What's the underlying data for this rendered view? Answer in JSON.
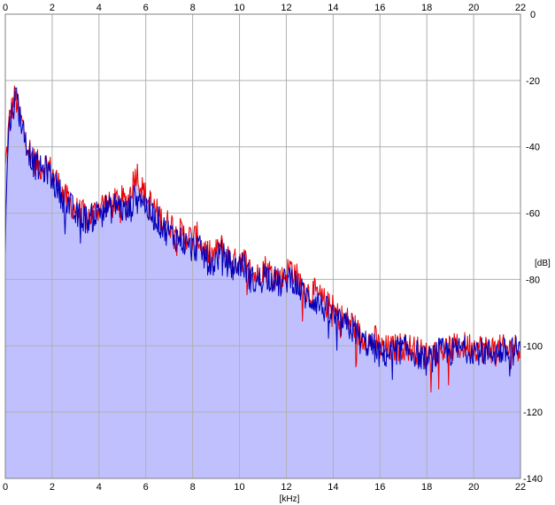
{
  "chart_data": {
    "type": "area",
    "xlabel": "[kHz]",
    "ylabel": "[dB]",
    "xlim": [
      0,
      22
    ],
    "ylim": [
      -140,
      0
    ],
    "x_ticks": [
      0,
      2,
      4,
      6,
      8,
      10,
      12,
      14,
      16,
      18,
      20,
      22
    ],
    "y_ticks": [
      0,
      -20,
      -40,
      -60,
      -80,
      -100,
      -120,
      -140
    ],
    "y_tick_labels": [
      "0",
      "-20",
      "-40",
      "-60",
      "-80",
      "-100",
      "-120",
      "-140"
    ],
    "grid": true,
    "colors": {
      "fill": "#c0c0ff",
      "red_line": "#ee0000",
      "blue_line": "#0000bb",
      "grid": "#b0b0b0",
      "frame": "#808080"
    },
    "series": [
      {
        "color": "red",
        "x": [
          0.0,
          0.1,
          0.2,
          0.3,
          0.4,
          0.5,
          0.6,
          0.8,
          1.0,
          1.2,
          1.5,
          1.8,
          2.0,
          2.2,
          2.5,
          2.8,
          3.0,
          3.2,
          3.5,
          3.8,
          4.0,
          4.2,
          4.5,
          4.8,
          5.0,
          5.2,
          5.4,
          5.6,
          5.8,
          6.0,
          6.2,
          6.5,
          6.8,
          7.0,
          7.2,
          7.5,
          7.8,
          8.0,
          8.2,
          8.5,
          8.8,
          9.0,
          9.2,
          9.5,
          9.8,
          10.0,
          10.2,
          10.5,
          10.8,
          11.0,
          11.2,
          11.5,
          11.8,
          12.0,
          12.2,
          12.5,
          12.8,
          13.0,
          13.2,
          13.5,
          13.8,
          14.0,
          14.2,
          14.5,
          14.8,
          15.0,
          15.2,
          15.4,
          15.6,
          15.8,
          16.0,
          16.5,
          17.0,
          17.5,
          18.0,
          18.5,
          19.0,
          19.5,
          20.0,
          20.5,
          21.0,
          21.5,
          22.0
        ],
        "values": [
          -47,
          -38,
          -30,
          -28,
          -25,
          -27,
          -30,
          -35,
          -40,
          -44,
          -46,
          -45,
          -48,
          -50,
          -55,
          -57,
          -59,
          -60,
          -61,
          -60,
          -58,
          -57,
          -58,
          -56,
          -56,
          -57,
          -52,
          -47,
          -52,
          -55,
          -57,
          -60,
          -63,
          -63,
          -64,
          -66,
          -67,
          -68,
          -67,
          -71,
          -73,
          -72,
          -70,
          -73,
          -75,
          -73,
          -74,
          -78,
          -79,
          -76,
          -77,
          -79,
          -80,
          -78,
          -76,
          -80,
          -83,
          -84,
          -84,
          -86,
          -88,
          -89,
          -91,
          -92,
          -93,
          -95,
          -98,
          -97,
          -99,
          -98,
          -101,
          -101,
          -100,
          -101,
          -103,
          -101,
          -101,
          -100,
          -100,
          -101,
          -101,
          -101,
          -100
        ]
      },
      {
        "color": "blue",
        "x": [
          0.0,
          0.1,
          0.2,
          0.3,
          0.4,
          0.5,
          0.6,
          0.8,
          1.0,
          1.2,
          1.5,
          1.8,
          2.0,
          2.2,
          2.5,
          2.8,
          3.0,
          3.2,
          3.5,
          3.8,
          4.0,
          4.2,
          4.5,
          4.8,
          5.0,
          5.2,
          5.4,
          5.6,
          5.8,
          6.0,
          6.2,
          6.5,
          6.8,
          7.0,
          7.2,
          7.5,
          7.8,
          8.0,
          8.2,
          8.5,
          8.8,
          9.0,
          9.2,
          9.5,
          9.8,
          10.0,
          10.2,
          10.5,
          10.8,
          11.0,
          11.2,
          11.5,
          11.8,
          12.0,
          12.2,
          12.5,
          12.8,
          13.0,
          13.2,
          13.5,
          13.8,
          14.0,
          14.2,
          14.5,
          14.8,
          15.0,
          15.2,
          15.4,
          15.6,
          15.8,
          16.0,
          16.5,
          17.0,
          17.5,
          18.0,
          18.5,
          19.0,
          19.5,
          20.0,
          20.5,
          21.0,
          21.5,
          22.0
        ],
        "values": [
          -70,
          -40,
          -32,
          -29,
          -26,
          -24,
          -30,
          -36,
          -41,
          -45,
          -47,
          -47,
          -50,
          -52,
          -56,
          -58,
          -61,
          -61,
          -62,
          -61,
          -59,
          -58,
          -59,
          -57,
          -59,
          -60,
          -58,
          -53,
          -55,
          -58,
          -60,
          -62,
          -65,
          -66,
          -67,
          -68,
          -70,
          -71,
          -70,
          -73,
          -76,
          -74,
          -72,
          -75,
          -77,
          -75,
          -76,
          -80,
          -81,
          -78,
          -79,
          -80,
          -82,
          -80,
          -79,
          -82,
          -85,
          -86,
          -86,
          -88,
          -90,
          -91,
          -93,
          -94,
          -95,
          -96,
          -99,
          -99,
          -100,
          -101,
          -103,
          -102,
          -101,
          -102,
          -105,
          -102,
          -102,
          -101,
          -101,
          -102,
          -102,
          -102,
          -101
        ]
      }
    ]
  }
}
